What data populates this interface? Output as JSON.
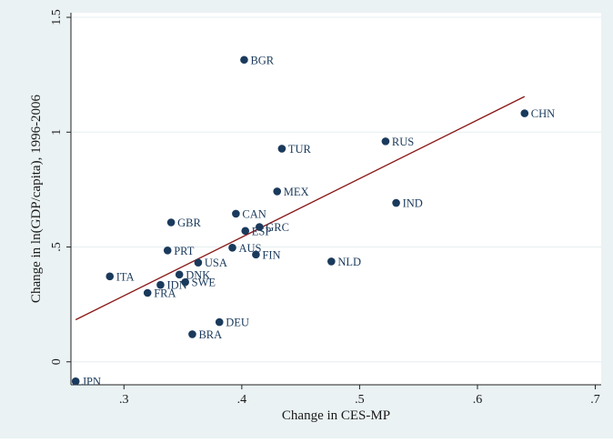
{
  "chart_data": {
    "type": "scatter",
    "title": "",
    "xlabel": "Change in CES-MP",
    "ylabel": "Change in ln(GDP/capita), 1996-2006",
    "xlim": [
      0.255,
      0.705
    ],
    "ylim": [
      -0.1,
      1.52
    ],
    "x_ticks": [
      0.3,
      0.4,
      0.5,
      0.6,
      0.7
    ],
    "x_tick_labels": [
      ".3",
      ".4",
      ".5",
      ".6",
      ".7"
    ],
    "y_ticks": [
      0,
      0.5,
      1,
      1.5
    ],
    "y_tick_labels": [
      "0",
      ".5",
      "1",
      "1.5"
    ],
    "grid": "horizontal",
    "legend": "none",
    "colors": {
      "outer_background": "#eaf2f3",
      "plot_background": "#ffffff",
      "marker": "#1a3a5c",
      "label": "#1a3a5c",
      "fit_line": "#8b1a1a",
      "grid": "#e6eef0"
    },
    "points": [
      {
        "label": "JPN",
        "x": 0.259,
        "y": -0.085
      },
      {
        "label": "ITA",
        "x": 0.288,
        "y": 0.372
      },
      {
        "label": "FRA",
        "x": 0.32,
        "y": 0.3
      },
      {
        "label": "IDN",
        "x": 0.331,
        "y": 0.335
      },
      {
        "label": "PRT",
        "x": 0.337,
        "y": 0.485
      },
      {
        "label": "GBR",
        "x": 0.34,
        "y": 0.607
      },
      {
        "label": "DNK",
        "x": 0.347,
        "y": 0.38
      },
      {
        "label": "SWE",
        "x": 0.352,
        "y": 0.347
      },
      {
        "label": "BRA",
        "x": 0.358,
        "y": 0.12
      },
      {
        "label": "USA",
        "x": 0.363,
        "y": 0.432
      },
      {
        "label": "DEU",
        "x": 0.381,
        "y": 0.173
      },
      {
        "label": "AUS",
        "x": 0.392,
        "y": 0.497
      },
      {
        "label": "CAN",
        "x": 0.395,
        "y": 0.645
      },
      {
        "label": "BGR",
        "x": 0.402,
        "y": 1.315
      },
      {
        "label": "ESP",
        "x": 0.403,
        "y": 0.57
      },
      {
        "label": "FIN",
        "x": 0.412,
        "y": 0.467
      },
      {
        "label": "GRC",
        "x": 0.415,
        "y": 0.587
      },
      {
        "label": "MEX",
        "x": 0.43,
        "y": 0.742
      },
      {
        "label": "TUR",
        "x": 0.434,
        "y": 0.928
      },
      {
        "label": "NLD",
        "x": 0.476,
        "y": 0.437
      },
      {
        "label": "RUS",
        "x": 0.522,
        "y": 0.96
      },
      {
        "label": "IND",
        "x": 0.531,
        "y": 0.692
      },
      {
        "label": "CHN",
        "x": 0.64,
        "y": 1.082
      }
    ],
    "fit_line": {
      "x": [
        0.259,
        0.64
      ],
      "y": [
        0.183,
        1.155
      ]
    }
  }
}
